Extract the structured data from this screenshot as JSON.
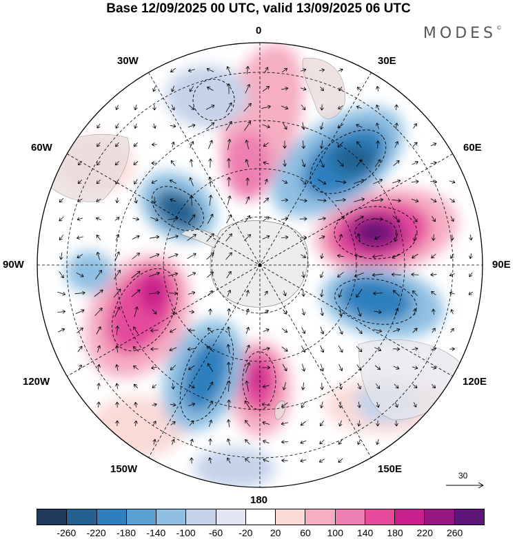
{
  "title": "Base 12/09/2025 00 UTC, valid 13/09/2025 06 UTC",
  "brand": "MODES",
  "brand_mark": "©",
  "longitude_labels": {
    "lon_0": "0",
    "lon_30e": "30E",
    "lon_60e": "60E",
    "lon_90e": "90E",
    "lon_120e": "120E",
    "lon_150e": "150E",
    "lon_180": "180",
    "lon_150w": "150W",
    "lon_120w": "120W",
    "lon_90w": "90W",
    "lon_60w": "60W",
    "lon_30w": "30W"
  },
  "reference_vector_label": "30",
  "colorbar": {
    "colors": [
      "#1f3a5c",
      "#23608f",
      "#2f7fbd",
      "#5aa0d2",
      "#8fbfe2",
      "#c4d3ea",
      "#e4e5f2",
      "#ffffff",
      "#fbdad8",
      "#f6aec3",
      "#ee7fb2",
      "#e44b9c",
      "#c81f8a",
      "#961781",
      "#5e1779"
    ],
    "tick_labels": [
      "-260",
      "-220",
      "-180",
      "-140",
      "-100",
      "-60",
      "-20",
      "20",
      "60",
      "100",
      "140",
      "180",
      "220",
      "260"
    ]
  },
  "icons": {
    "arrow": "wind-vector-icon"
  }
}
